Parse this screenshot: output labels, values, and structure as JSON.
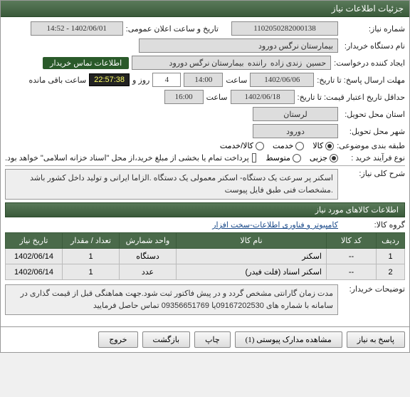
{
  "window": {
    "title": "جزئیات اطلاعات نیاز"
  },
  "fields": {
    "needNo": {
      "label": "شماره نیاز:",
      "value": "1102050282000138"
    },
    "announce": {
      "label": "تاریخ و ساعت اعلان عمومی:",
      "value": "1402/06/01 - 14:52"
    },
    "buyerOrg": {
      "label": "نام دستگاه خریدار:",
      "value": "بیمارستان نرگس دورود"
    },
    "requester": {
      "label": "ایجاد کننده درخواست:",
      "value": "حسین  زندی زاده  راننده  بیمارستان نرگس دورود"
    },
    "buyerContact": {
      "badge": "اطلاعات تماس خریدار"
    },
    "deadline": {
      "label": "مهلت ارسال پاسخ: تا تاریخ:",
      "date": "1402/06/06",
      "timeLabel": "ساعت",
      "time": "14:00",
      "dayCount": "4",
      "dayLabel": "روز و",
      "countdown": "22:57:38",
      "remainLabel": "ساعت باقی مانده"
    },
    "validity": {
      "label": "حداقل تاریخ اعتبار قیمت: تا تاریخ:",
      "date": "1402/06/18",
      "timeLabel": "ساعت",
      "time": "16:00"
    },
    "province": {
      "label": "استان محل تحویل:",
      "value": "لرستان"
    },
    "city": {
      "label": "شهر محل تحویل:",
      "value": "دورود"
    },
    "category": {
      "label": "طبقه بندی موضوعی:",
      "opts": [
        "کالا",
        "خدمت",
        "کالا/خدمت"
      ],
      "selected": 0
    },
    "buyType": {
      "label": "نوع فرآیند خرید :",
      "opts": [
        "جزیی",
        "متوسط"
      ],
      "selected": 0,
      "note": "پرداخت تمام یا بخشی از مبلغ خرید،از محل \"اسناد خزانه اسلامی\" خواهد بود.",
      "checkbox": false
    }
  },
  "mainDesc": {
    "label": "شرح کلی نیاز:",
    "text": "اسکنر پر سرعت یک دستگاه- اسکنر معمولی یک دستگاه .الزاما ایرانی و تولید داخل کشور باشد .مشخصات فنی طبق فایل پیوست"
  },
  "itemsSection": {
    "title": "اطلاعات کالاهای مورد نیاز",
    "group": {
      "label": "گروه کالا:",
      "value": "کامپیوتر و فناوری اطلاعات-سخت افزار"
    }
  },
  "table": {
    "headers": [
      "ردیف",
      "کد کالا",
      "نام کالا",
      "واحد شمارش",
      "تعداد / مقدار",
      "تاریخ نیاز"
    ],
    "rows": [
      [
        "1",
        "--",
        "اسکنر",
        "دستگاه",
        "1",
        "1402/06/14"
      ],
      [
        "2",
        "--",
        "اسکنر اسناد (فلت فیدر)",
        "عدد",
        "1",
        "1402/06/14"
      ]
    ]
  },
  "buyerNotes": {
    "label": "توضیحات خریدار:",
    "text": "مدت زمان گارانتی مشخص گردد و در پیش فاکتور ثبت شود.جهت هماهنگی قبل از قیمت گذاری در سامانه  با شماره های 09167202530یا 09356651769 تماس حاصل فرمایید"
  },
  "buttons": {
    "respond": "پاسخ به نیاز",
    "attachments": "مشاهده مدارک پیوستی (1)",
    "print": "چاپ",
    "back": "بازگشت",
    "exit": "خروج"
  },
  "colors": {
    "headerBg1": "#5a7a5a",
    "headerBg2": "#3a5a3a",
    "badgeBg": "#2a5a2a",
    "countdownBg": "#222222",
    "countdownFg": "#ffff66"
  }
}
